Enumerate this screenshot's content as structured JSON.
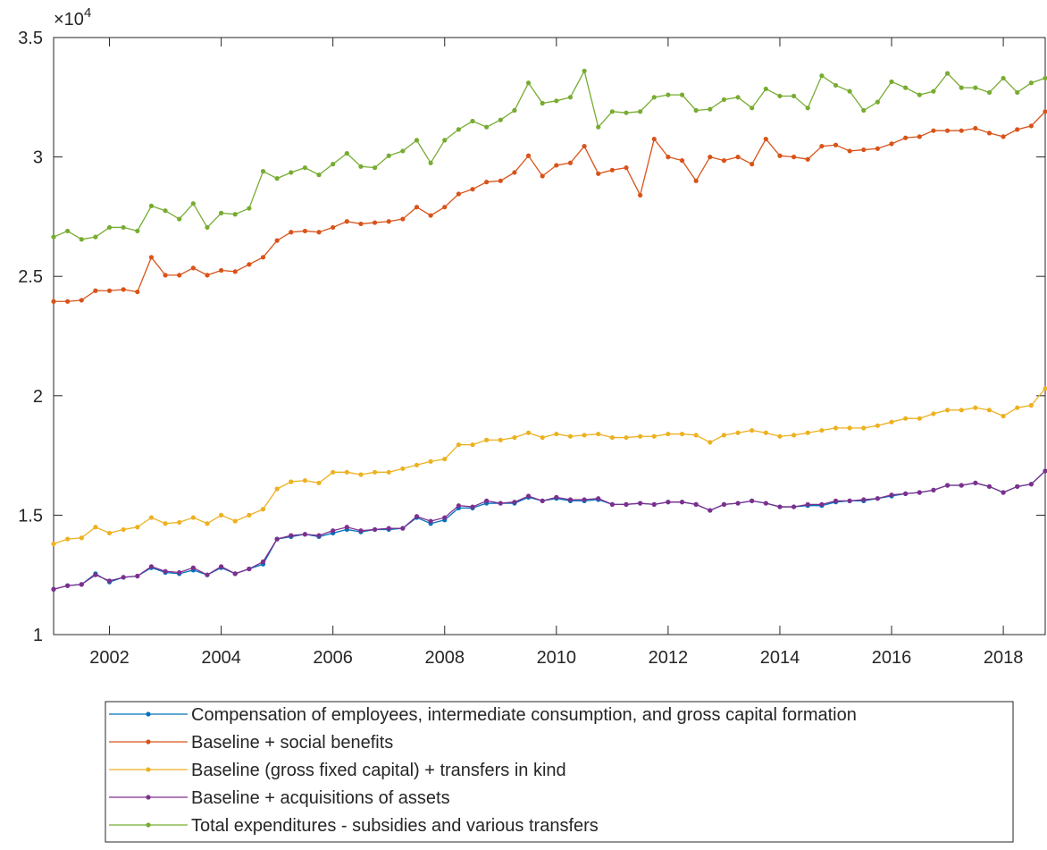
{
  "chart_data": {
    "type": "line",
    "y_multiplier_base": "×10",
    "y_multiplier_exponent": "4",
    "x": [
      2001,
      2001.25,
      2001.5,
      2001.75,
      2002,
      2002.25,
      2002.5,
      2002.75,
      2003,
      2003.25,
      2003.5,
      2003.75,
      2004,
      2004.25,
      2004.5,
      2004.75,
      2005,
      2005.25,
      2005.5,
      2005.75,
      2006,
      2006.25,
      2006.5,
      2006.75,
      2007,
      2007.25,
      2007.5,
      2007.75,
      2008,
      2008.25,
      2008.5,
      2008.75,
      2009,
      2009.25,
      2009.5,
      2009.75,
      2010,
      2010.25,
      2010.5,
      2010.75,
      2011,
      2011.25,
      2011.5,
      2011.75,
      2012,
      2012.25,
      2012.5,
      2012.75,
      2013,
      2013.25,
      2013.5,
      2013.75,
      2014,
      2014.25,
      2014.5,
      2014.75,
      2015,
      2015.25,
      2015.5,
      2015.75,
      2016,
      2016.25,
      2016.5,
      2016.75,
      2017,
      2017.25,
      2017.5,
      2017.75,
      2018,
      2018.25,
      2018.5,
      2018.75
    ],
    "xlim": [
      2001,
      2018.75
    ],
    "xticks": [
      2002,
      2004,
      2006,
      2008,
      2010,
      2012,
      2014,
      2016,
      2018
    ],
    "ylim": [
      1,
      3.5
    ],
    "yticks": [
      1,
      1.5,
      2,
      2.5,
      3,
      3.5
    ],
    "grid": false,
    "series": [
      {
        "name": "Compensation of employees, intermediate consumption, and gross capital formation",
        "color": "#0072BD",
        "values": [
          1.19,
          1.205,
          1.21,
          1.255,
          1.22,
          1.24,
          1.245,
          1.28,
          1.26,
          1.255,
          1.27,
          1.25,
          1.28,
          1.255,
          1.275,
          1.295,
          1.4,
          1.41,
          1.42,
          1.41,
          1.425,
          1.44,
          1.43,
          1.44,
          1.44,
          1.445,
          1.49,
          1.465,
          1.48,
          1.53,
          1.53,
          1.55,
          1.55,
          1.55,
          1.575,
          1.56,
          1.57,
          1.56,
          1.56,
          1.565,
          1.545,
          1.545,
          1.55,
          1.545,
          1.555,
          1.555,
          1.545,
          1.52,
          1.545,
          1.55,
          1.56,
          1.55,
          1.535,
          1.535,
          1.54,
          1.54,
          1.555,
          1.56,
          1.56,
          1.57,
          1.58,
          1.59,
          1.595,
          1.605,
          1.625,
          1.625,
          1.635,
          1.62,
          1.595,
          1.62,
          1.63,
          1.685
        ]
      },
      {
        "name": "Baseline + social benefits",
        "color": "#D95319",
        "values": [
          2.395,
          2.395,
          2.4,
          2.44,
          2.44,
          2.445,
          2.435,
          2.58,
          2.505,
          2.505,
          2.535,
          2.505,
          2.525,
          2.52,
          2.55,
          2.58,
          2.65,
          2.685,
          2.69,
          2.685,
          2.705,
          2.73,
          2.72,
          2.725,
          2.73,
          2.74,
          2.79,
          2.755,
          2.79,
          2.845,
          2.865,
          2.895,
          2.9,
          2.935,
          3.005,
          2.92,
          2.965,
          2.975,
          3.045,
          2.93,
          2.945,
          2.955,
          2.84,
          3.075,
          3.0,
          2.985,
          2.9,
          3.0,
          2.985,
          3.0,
          2.97,
          3.075,
          3.005,
          3.0,
          2.99,
          3.045,
          3.05,
          3.025,
          3.03,
          3.035,
          3.055,
          3.08,
          3.085,
          3.11,
          3.11,
          3.11,
          3.12,
          3.1,
          3.085,
          3.115,
          3.13,
          3.19
        ]
      },
      {
        "name": "Baseline (gross fixed capital) + transfers in kind",
        "color": "#EDB120",
        "values": [
          1.38,
          1.4,
          1.405,
          1.45,
          1.425,
          1.44,
          1.45,
          1.49,
          1.465,
          1.47,
          1.49,
          1.465,
          1.5,
          1.475,
          1.5,
          1.525,
          1.61,
          1.64,
          1.645,
          1.635,
          1.68,
          1.68,
          1.67,
          1.68,
          1.68,
          1.695,
          1.71,
          1.725,
          1.735,
          1.795,
          1.795,
          1.815,
          1.815,
          1.825,
          1.845,
          1.825,
          1.84,
          1.83,
          1.835,
          1.84,
          1.825,
          1.825,
          1.83,
          1.83,
          1.84,
          1.84,
          1.835,
          1.805,
          1.835,
          1.845,
          1.855,
          1.845,
          1.83,
          1.835,
          1.845,
          1.855,
          1.865,
          1.865,
          1.865,
          1.875,
          1.89,
          1.905,
          1.905,
          1.925,
          1.94,
          1.94,
          1.95,
          1.94,
          1.915,
          1.95,
          1.96,
          2.03
        ]
      },
      {
        "name": "Baseline + acquisitions of assets",
        "color": "#7E2F8E",
        "values": [
          1.19,
          1.205,
          1.21,
          1.25,
          1.225,
          1.24,
          1.245,
          1.285,
          1.265,
          1.26,
          1.28,
          1.25,
          1.285,
          1.255,
          1.275,
          1.305,
          1.4,
          1.415,
          1.42,
          1.415,
          1.435,
          1.45,
          1.435,
          1.44,
          1.445,
          1.445,
          1.495,
          1.475,
          1.49,
          1.54,
          1.535,
          1.56,
          1.55,
          1.555,
          1.58,
          1.56,
          1.575,
          1.565,
          1.565,
          1.57,
          1.545,
          1.545,
          1.55,
          1.545,
          1.555,
          1.555,
          1.545,
          1.52,
          1.545,
          1.55,
          1.56,
          1.55,
          1.535,
          1.535,
          1.545,
          1.545,
          1.56,
          1.56,
          1.565,
          1.57,
          1.585,
          1.59,
          1.595,
          1.605,
          1.625,
          1.625,
          1.635,
          1.62,
          1.595,
          1.62,
          1.63,
          1.685
        ]
      },
      {
        "name": "Total expenditures - subsidies and various transfers",
        "color": "#77AC30",
        "values": [
          2.665,
          2.69,
          2.655,
          2.665,
          2.705,
          2.705,
          2.69,
          2.795,
          2.775,
          2.74,
          2.805,
          2.705,
          2.765,
          2.76,
          2.785,
          2.94,
          2.91,
          2.935,
          2.955,
          2.925,
          2.97,
          3.015,
          2.96,
          2.955,
          3.005,
          3.025,
          3.07,
          2.975,
          3.07,
          3.115,
          3.15,
          3.125,
          3.155,
          3.195,
          3.31,
          3.225,
          3.235,
          3.25,
          3.36,
          3.125,
          3.19,
          3.185,
          3.19,
          3.25,
          3.26,
          3.26,
          3.195,
          3.2,
          3.24,
          3.25,
          3.205,
          3.285,
          3.255,
          3.255,
          3.205,
          3.34,
          3.3,
          3.275,
          3.195,
          3.23,
          3.315,
          3.29,
          3.26,
          3.275,
          3.35,
          3.29,
          3.29,
          3.27,
          3.33,
          3.27,
          3.31,
          3.33
        ]
      }
    ]
  }
}
